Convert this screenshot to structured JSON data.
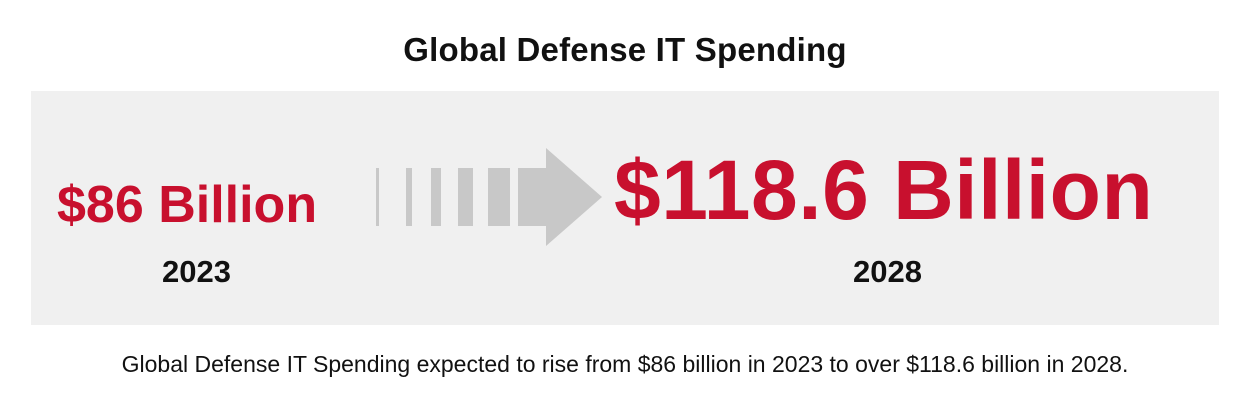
{
  "title": "Global Defense IT Spending",
  "left": {
    "value": "$86 Billion",
    "year": "2023"
  },
  "right": {
    "value": "$118.6 Billion",
    "year": "2028"
  },
  "arrow_icon": "right-arrow-icon",
  "caption": "Global Defense IT Spending expected to rise from $86 billion in 2023 to over $118.6 billion in 2028.",
  "colors": {
    "accent": "#c8102e",
    "panel": "#f0f0f0",
    "arrow": "#c8c8c8"
  }
}
